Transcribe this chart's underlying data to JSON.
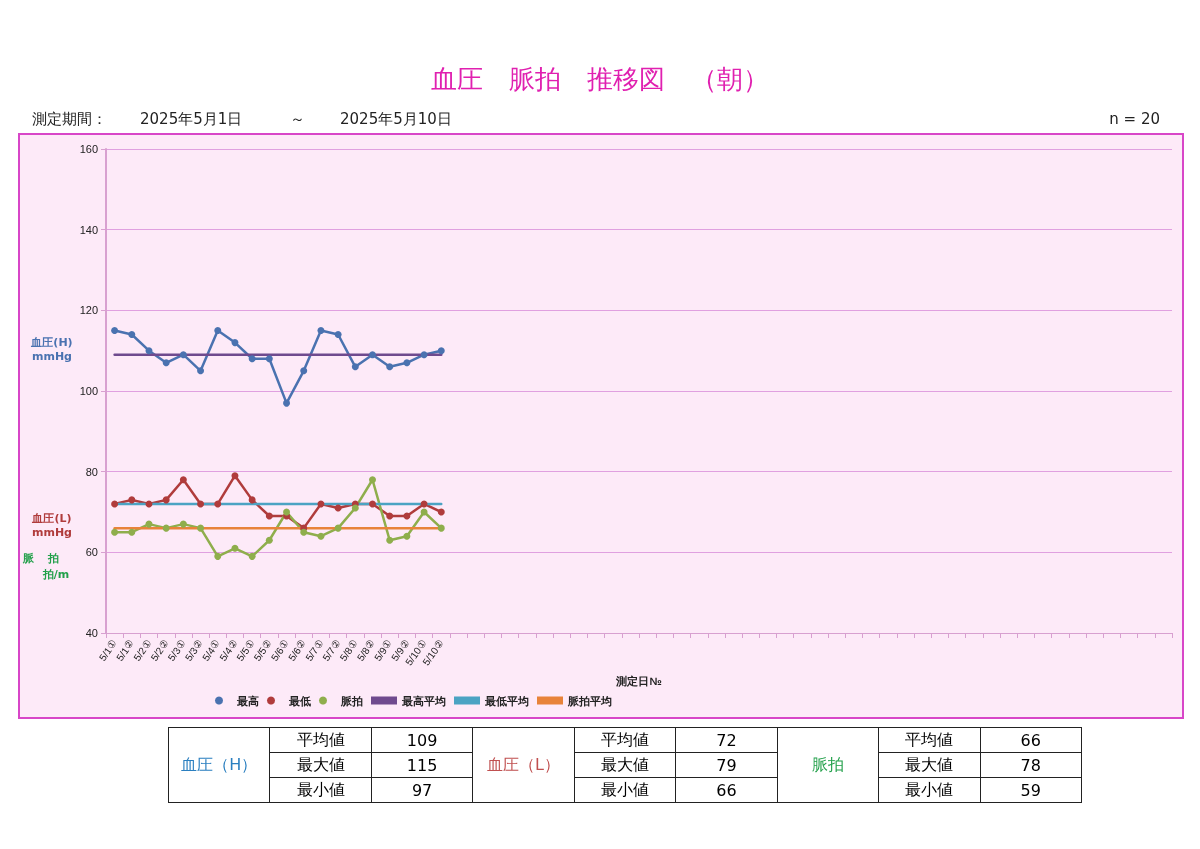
{
  "chart_data": {
    "type": "line",
    "title": "血圧　脈拍　推移図　（朝）",
    "xlabel": "測定日№",
    "categories": [
      "5/1①",
      "5/1②",
      "5/2①",
      "5/2②",
      "5/3①",
      "5/3②",
      "5/4①",
      "5/4②",
      "5/5①",
      "5/5②",
      "5/6①",
      "5/6②",
      "5/7①",
      "5/7②",
      "5/8①",
      "5/8②",
      "5/9①",
      "5/9②",
      "5/10①",
      "5/10②",
      null,
      null,
      null,
      null,
      null,
      null,
      null,
      null,
      null,
      null,
      null,
      null,
      null,
      null,
      null,
      null,
      null,
      null,
      null,
      null,
      null,
      null,
      null,
      null,
      null,
      null,
      null,
      null,
      null,
      null,
      null,
      null,
      null,
      null,
      null,
      null,
      null,
      null,
      null,
      null,
      null,
      null
    ],
    "series": [
      {
        "name": "最高",
        "color": "#4a72b0",
        "marker": "circle",
        "values": [
          115,
          114,
          110,
          107,
          109,
          105,
          115,
          112,
          108,
          108,
          97,
          105,
          115,
          114,
          106,
          109,
          106,
          107,
          109,
          110,
          null,
          null,
          null,
          null,
          null,
          null,
          null,
          null,
          null,
          null,
          null,
          null,
          null,
          null,
          null,
          null,
          null,
          null,
          null,
          null,
          null,
          null,
          null,
          null,
          null,
          null,
          null,
          null,
          null,
          null,
          null,
          null,
          null,
          null,
          null,
          null,
          null,
          null,
          null,
          null,
          null,
          null
        ]
      },
      {
        "name": "最低",
        "color": "#b03c3c",
        "marker": "circle",
        "values": [
          72,
          73,
          72,
          73,
          78,
          72,
          72,
          79,
          73,
          69,
          69,
          66,
          72,
          71,
          72,
          72,
          69,
          69,
          72,
          70,
          null,
          null,
          null,
          null,
          null,
          null,
          null,
          null,
          null,
          null,
          null,
          null,
          null,
          null,
          null,
          null,
          null,
          null,
          null,
          null,
          null,
          null,
          null,
          null,
          null,
          null,
          null,
          null,
          null,
          null,
          null,
          null,
          null,
          null,
          null,
          null,
          null,
          null,
          null,
          null,
          null,
          null
        ]
      },
      {
        "name": "脈拍",
        "color": "#8fae4c",
        "marker": "circle",
        "values": [
          65,
          65,
          67,
          66,
          67,
          66,
          59,
          61,
          59,
          63,
          70,
          65,
          64,
          66,
          71,
          78,
          63,
          64,
          70,
          66,
          null,
          null,
          null,
          null,
          null,
          null,
          null,
          null,
          null,
          null,
          null,
          null,
          null,
          null,
          null,
          null,
          null,
          null,
          null,
          null,
          null,
          null,
          null,
          null,
          null,
          null,
          null,
          null,
          null,
          null,
          null,
          null,
          null,
          null,
          null,
          null,
          null,
          null,
          null,
          null,
          null,
          null
        ]
      },
      {
        "name": "最高平均",
        "color": "#6f4a8e",
        "marker": "none",
        "values": [
          109,
          109,
          109,
          109,
          109,
          109,
          109,
          109,
          109,
          109,
          109,
          109,
          109,
          109,
          109,
          109,
          109,
          109,
          109,
          109,
          null,
          null,
          null,
          null,
          null,
          null,
          null,
          null,
          null,
          null,
          null,
          null,
          null,
          null,
          null,
          null,
          null,
          null,
          null,
          null,
          null,
          null,
          null,
          null,
          null,
          null,
          null,
          null,
          null,
          null,
          null,
          null,
          null,
          null,
          null,
          null,
          null,
          null,
          null,
          null,
          null,
          null
        ]
      },
      {
        "name": "最低平均",
        "color": "#4ba3c3",
        "marker": "none",
        "values": [
          72,
          72,
          72,
          72,
          72,
          72,
          72,
          72,
          72,
          72,
          72,
          72,
          72,
          72,
          72,
          72,
          72,
          72,
          72,
          72,
          null,
          null,
          null,
          null,
          null,
          null,
          null,
          null,
          null,
          null,
          null,
          null,
          null,
          null,
          null,
          null,
          null,
          null,
          null,
          null,
          null,
          null,
          null,
          null,
          null,
          null,
          null,
          null,
          null,
          null,
          null,
          null,
          null,
          null,
          null,
          null,
          null,
          null,
          null,
          null,
          null,
          null
        ]
      },
      {
        "name": "脈拍平均",
        "color": "#e8833a",
        "marker": "none",
        "values": [
          66,
          66,
          66,
          66,
          66,
          66,
          66,
          66,
          66,
          66,
          66,
          66,
          66,
          66,
          66,
          66,
          66,
          66,
          66,
          66,
          null,
          null,
          null,
          null,
          null,
          null,
          null,
          null,
          null,
          null,
          null,
          null,
          null,
          null,
          null,
          null,
          null,
          null,
          null,
          null,
          null,
          null,
          null,
          null,
          null,
          null,
          null,
          null,
          null,
          null,
          null,
          null,
          null,
          null,
          null,
          null,
          null,
          null,
          null,
          null,
          null,
          null
        ]
      }
    ],
    "ylim": [
      40,
      160
    ],
    "yticks": [
      40,
      60,
      80,
      100,
      120,
      140,
      160
    ],
    "grid": "y",
    "legend": "bottom",
    "annotations": [
      "測定期間：",
      "2025年5月1日",
      "～",
      "2025年5月10日",
      "n = 20",
      "血圧(H)\nmmHg",
      "血圧(L)\nmmHg",
      "脈拍",
      "拍/m",
      "血圧（H）",
      "平均値",
      "109",
      "最大値",
      "115",
      "最小値",
      "97",
      "血圧（L）",
      "平均値",
      "72",
      "最大値",
      "79",
      "最小値",
      "66",
      "脈拍",
      "平均値",
      "66",
      "最大値",
      "78",
      "最小値",
      "59"
    ]
  }
}
